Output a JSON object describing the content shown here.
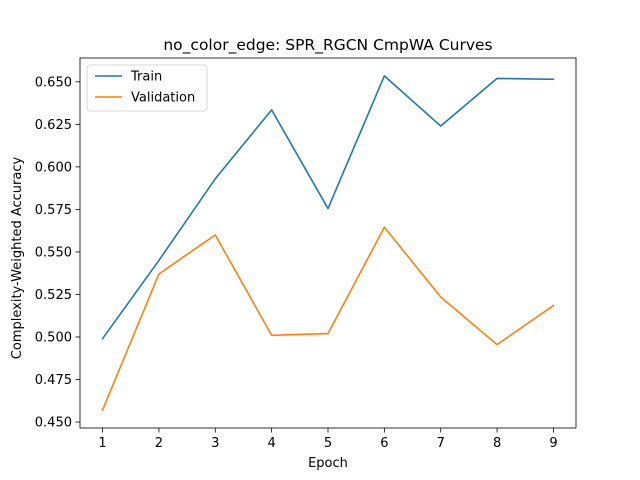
{
  "chart_data": {
    "type": "line",
    "title": "no_color_edge: SPR_RGCN CmpWA Curves",
    "xlabel": "Epoch",
    "ylabel": "Complexity-Weighted Accuracy",
    "x": [
      1,
      2,
      3,
      4,
      5,
      6,
      7,
      8,
      9
    ],
    "series": [
      {
        "name": "Train",
        "color": "#1f77b4",
        "values": [
          0.499,
          0.545,
          0.593,
          0.6335,
          0.5755,
          0.6535,
          0.624,
          0.652,
          0.6515
        ]
      },
      {
        "name": "Validation",
        "color": "#ff7f0e",
        "values": [
          0.457,
          0.537,
          0.56,
          0.501,
          0.502,
          0.5645,
          0.5235,
          0.4955,
          0.5185
        ]
      }
    ],
    "xlim": [
      0.6,
      9.4
    ],
    "ylim": [
      0.4465,
      0.664
    ],
    "xticks": [
      "1",
      "2",
      "3",
      "4",
      "5",
      "6",
      "7",
      "8",
      "9"
    ],
    "yticks": [
      "0.450",
      "0.475",
      "0.500",
      "0.525",
      "0.550",
      "0.575",
      "0.600",
      "0.625",
      "0.650"
    ],
    "grid": false,
    "legend": "top-left"
  }
}
